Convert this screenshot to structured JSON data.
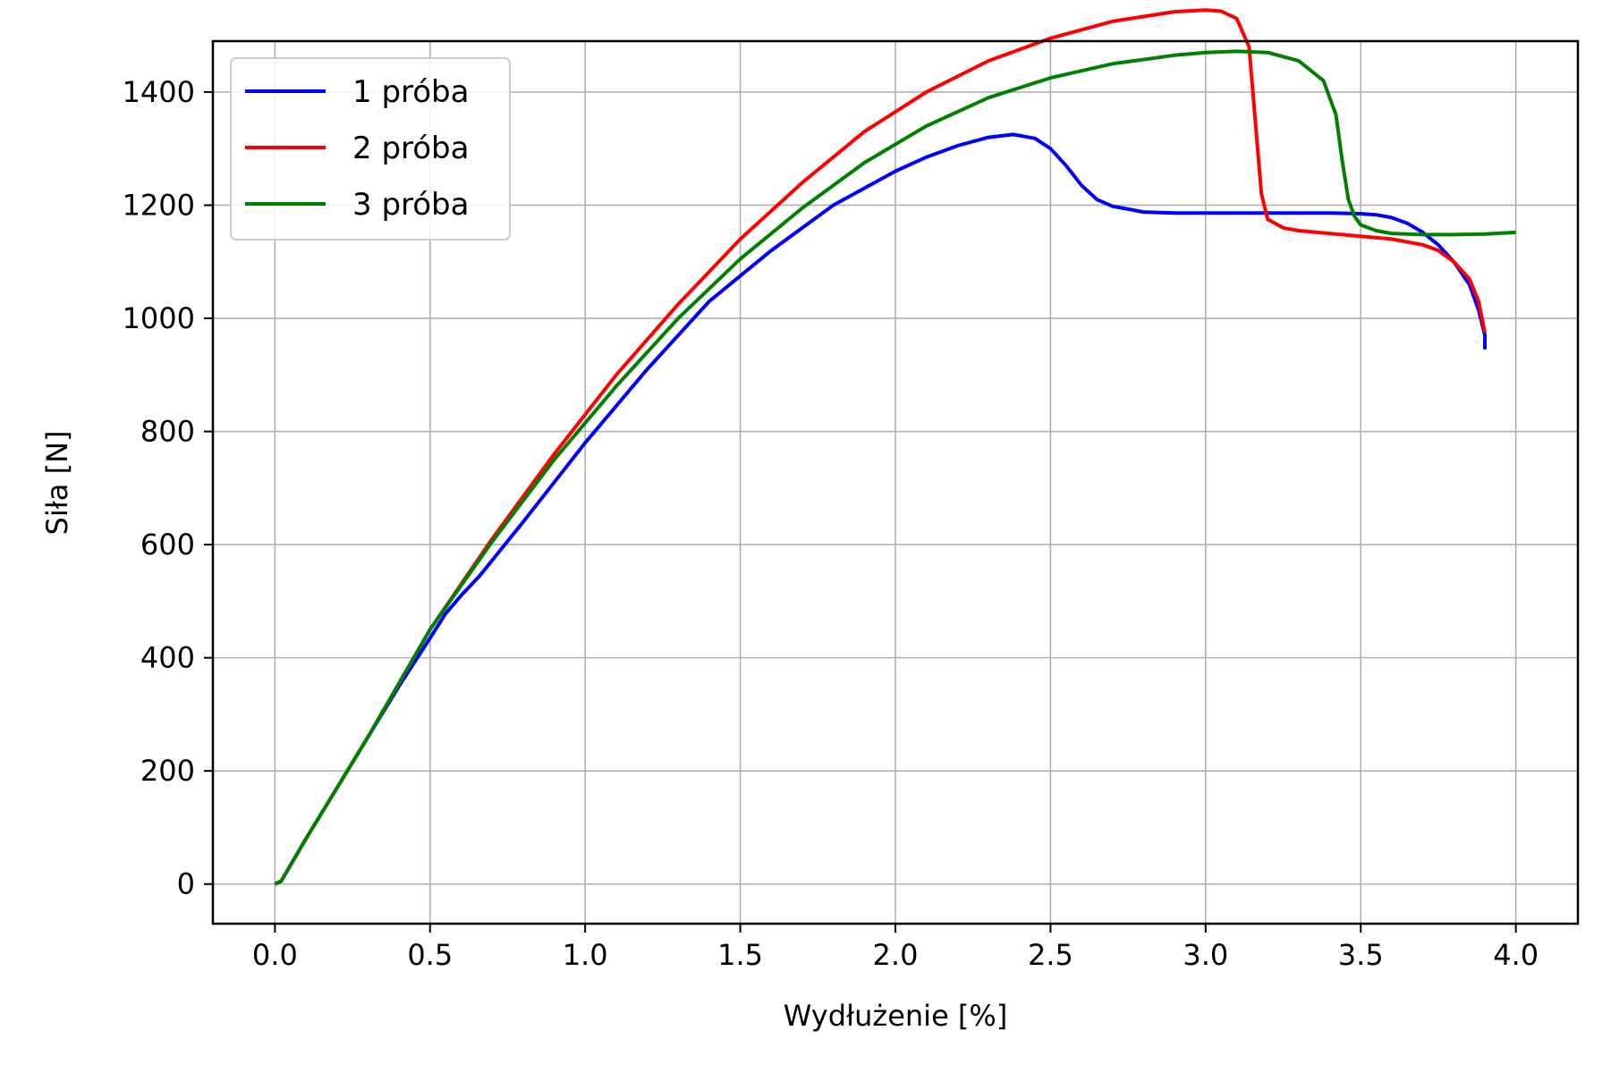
{
  "chart_data": {
    "type": "line",
    "title": "",
    "xlabel": "Wydłużenie [%]",
    "ylabel": "Siła [N]",
    "xlim": [
      -0.2,
      4.2
    ],
    "ylim": [
      -70,
      1490
    ],
    "xticks": [
      0.0,
      0.5,
      1.0,
      1.5,
      2.0,
      2.5,
      3.0,
      3.5,
      4.0
    ],
    "xtick_labels": [
      "0.0",
      "0.5",
      "1.0",
      "1.5",
      "2.0",
      "2.5",
      "3.0",
      "3.5",
      "4.0"
    ],
    "yticks": [
      0,
      200,
      400,
      600,
      800,
      1000,
      1200,
      1400
    ],
    "ytick_labels": [
      "0",
      "200",
      "400",
      "600",
      "800",
      "1000",
      "1200",
      "1400"
    ],
    "grid": true,
    "legend_position": "top-left",
    "series": [
      {
        "name": "1 próba",
        "color": "#0000ff",
        "x": [
          0.0,
          0.02,
          0.1,
          0.2,
          0.3,
          0.4,
          0.5,
          0.55,
          0.6,
          0.66,
          0.8,
          1.0,
          1.2,
          1.4,
          1.6,
          1.8,
          2.0,
          2.1,
          2.2,
          2.3,
          2.38,
          2.45,
          2.5,
          2.55,
          2.6,
          2.65,
          2.7,
          2.8,
          2.9,
          3.0,
          3.2,
          3.4,
          3.5,
          3.55,
          3.6,
          3.65,
          3.7,
          3.75,
          3.8,
          3.85,
          3.88,
          3.9,
          3.9
        ],
        "y": [
          0,
          5,
          80,
          170,
          260,
          350,
          435,
          478,
          510,
          545,
          640,
          780,
          910,
          1030,
          1120,
          1200,
          1260,
          1285,
          1305,
          1320,
          1325,
          1318,
          1300,
          1270,
          1235,
          1210,
          1198,
          1188,
          1186,
          1186,
          1186,
          1186,
          1185,
          1183,
          1178,
          1168,
          1152,
          1130,
          1100,
          1060,
          1015,
          970,
          945
        ]
      },
      {
        "name": "2 próba",
        "color": "#ff0000",
        "x": [
          0.0,
          0.02,
          0.1,
          0.2,
          0.3,
          0.4,
          0.5,
          0.7,
          0.9,
          1.1,
          1.3,
          1.5,
          1.7,
          1.9,
          2.1,
          2.3,
          2.5,
          2.7,
          2.9,
          3.0,
          3.05,
          3.1,
          3.14,
          3.16,
          3.18,
          3.2,
          3.25,
          3.3,
          3.4,
          3.5,
          3.6,
          3.7,
          3.75,
          3.8,
          3.85,
          3.88,
          3.9
        ],
        "y": [
          0,
          5,
          80,
          170,
          260,
          355,
          450,
          610,
          760,
          900,
          1025,
          1140,
          1240,
          1330,
          1400,
          1455,
          1495,
          1525,
          1542,
          1545,
          1543,
          1530,
          1480,
          1350,
          1220,
          1175,
          1160,
          1155,
          1150,
          1145,
          1140,
          1130,
          1120,
          1100,
          1070,
          1030,
          975
        ]
      },
      {
        "name": "3 próba",
        "color": "#008000",
        "x": [
          0.0,
          0.02,
          0.1,
          0.2,
          0.3,
          0.4,
          0.5,
          0.7,
          0.9,
          1.1,
          1.3,
          1.5,
          1.7,
          1.9,
          2.1,
          2.3,
          2.5,
          2.7,
          2.9,
          3.0,
          3.1,
          3.2,
          3.3,
          3.38,
          3.42,
          3.44,
          3.46,
          3.48,
          3.5,
          3.55,
          3.6,
          3.7,
          3.8,
          3.9,
          4.0
        ],
        "y": [
          0,
          5,
          80,
          170,
          260,
          355,
          450,
          605,
          750,
          880,
          1000,
          1105,
          1195,
          1275,
          1340,
          1390,
          1425,
          1450,
          1465,
          1470,
          1472,
          1470,
          1455,
          1420,
          1360,
          1280,
          1210,
          1180,
          1165,
          1155,
          1150,
          1148,
          1148,
          1149,
          1152
        ]
      }
    ]
  }
}
